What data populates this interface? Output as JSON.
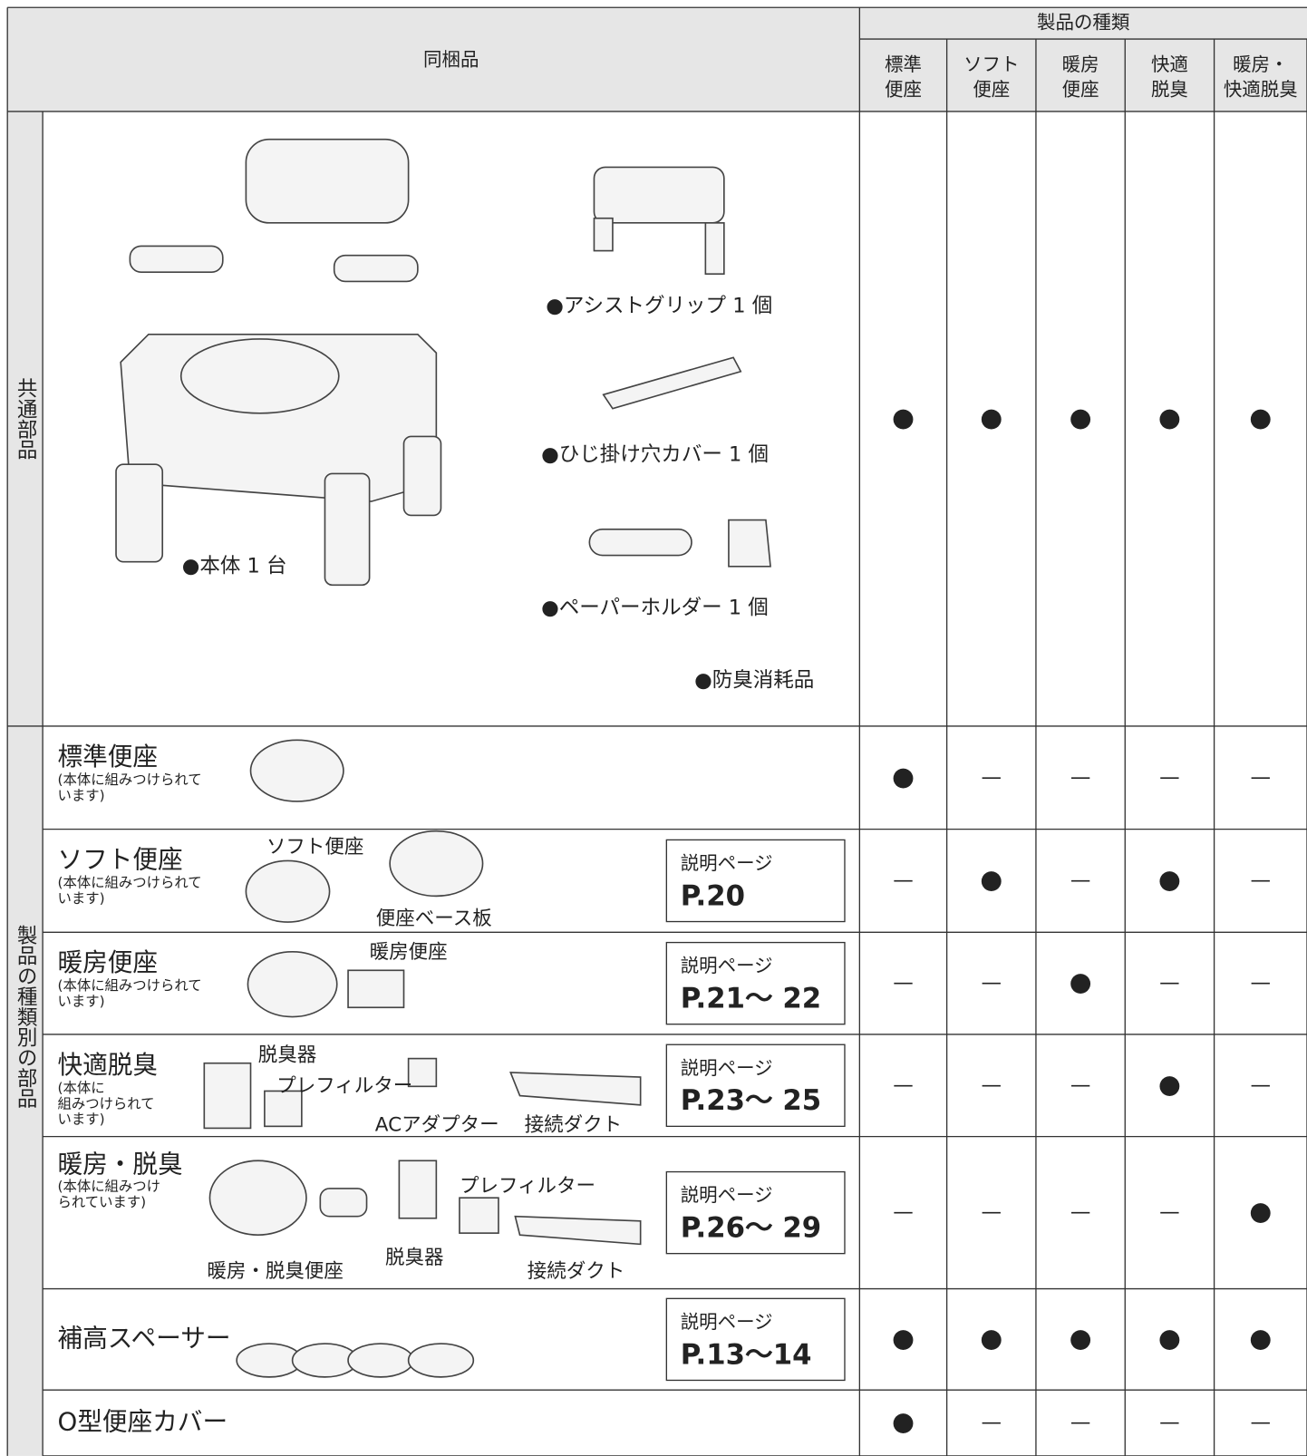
{
  "header": {
    "items_label": "同梱品",
    "types_label": "製品の種類",
    "types": [
      [
        "標準",
        "便座"
      ],
      [
        "ソフト",
        "便座"
      ],
      [
        "暖房",
        "便座"
      ],
      [
        "快適",
        "脱臭"
      ],
      [
        "暖房・",
        "快適脱臭"
      ]
    ]
  },
  "common": {
    "label": "共通部品",
    "items": [
      "●本体 1 台",
      "●アシストグリップ 1 個",
      "●ひじ掛け穴カバー 1 個",
      "●ペーパーホルダー 1 個",
      "●防臭消耗品"
    ],
    "marks": [
      "●",
      "●",
      "●",
      "●",
      "●"
    ]
  },
  "parts": {
    "label": "製品の種類別の部品",
    "rows": [
      {
        "name": "標準便座",
        "note": [
          "(本体に組みつけられて",
          "います)"
        ],
        "callouts": [],
        "marks": [
          "●",
          "—",
          "—",
          "—",
          "—"
        ]
      },
      {
        "name": "ソフト便座",
        "note": [
          "(本体に組みつけられて",
          "います)"
        ],
        "callouts": [
          "ソフト便座",
          "便座ベース板"
        ],
        "page": {
          "label": "説明ページ",
          "value": "P.20"
        },
        "marks": [
          "—",
          "●",
          "—",
          "●",
          "—"
        ]
      },
      {
        "name": "暖房便座",
        "note": [
          "(本体に組みつけられて",
          "います)"
        ],
        "callouts": [
          "暖房便座"
        ],
        "page": {
          "label": "説明ページ",
          "value": "P.21～ 22"
        },
        "marks": [
          "—",
          "—",
          "●",
          "—",
          "—"
        ]
      },
      {
        "name": "快適脱臭",
        "note": [
          "(本体に",
          "組みつけられて",
          "います)"
        ],
        "callouts": [
          "脱臭器",
          "プレフィルター",
          "ACアダプター",
          "接続ダクト"
        ],
        "page": {
          "label": "説明ページ",
          "value": "P.23～ 25"
        },
        "marks": [
          "—",
          "—",
          "—",
          "●",
          "—"
        ]
      },
      {
        "name": "暖房・脱臭",
        "note": [
          "(本体に組みつけ",
          "られています)"
        ],
        "callouts": [
          "プレフィルター",
          "脱臭器",
          "暖房・脱臭便座",
          "接続ダクト"
        ],
        "page": {
          "label": "説明ページ",
          "value": "P.26～ 29"
        },
        "marks": [
          "—",
          "—",
          "—",
          "—",
          "●"
        ]
      },
      {
        "name": "補高スペーサー",
        "note": [],
        "callouts": [],
        "page": {
          "label": "説明ページ",
          "value": "P.13～14"
        },
        "marks": [
          "●",
          "●",
          "●",
          "●",
          "●"
        ]
      },
      {
        "name": "O型便座カバー",
        "note": [],
        "callouts": [],
        "marks": [
          "●",
          "—",
          "—",
          "—",
          "—"
        ]
      }
    ]
  }
}
